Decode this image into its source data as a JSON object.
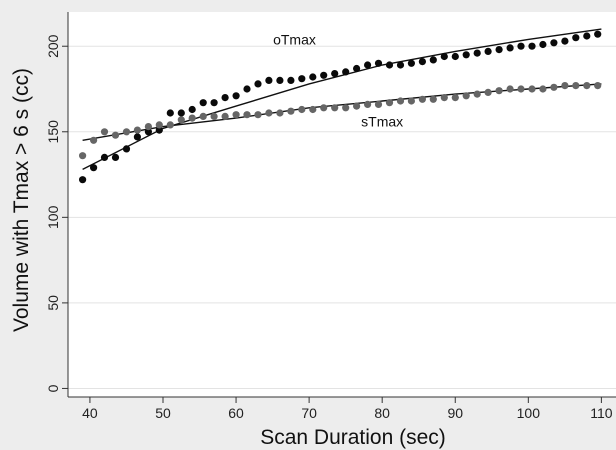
{
  "chart_data": {
    "type": "scatter",
    "title": "",
    "xlabel": "Scan Duration (sec)",
    "ylabel": "Volume with Tmax > 6 s (cc)",
    "xlim": [
      37,
      112
    ],
    "ylim": [
      -5,
      220
    ],
    "xticks": [
      40,
      50,
      60,
      70,
      80,
      90,
      100,
      110
    ],
    "yticks": [
      0,
      50,
      100,
      150,
      200
    ],
    "grid": "horizontal",
    "colors": {
      "background": "#ededed",
      "plot_background": "#ffffff",
      "grid": "#e3e3e3",
      "axis": "#333333",
      "fit_line": "#111111"
    },
    "series": [
      {
        "name": "oTmax",
        "color": "#0a0a0a",
        "x": [
          39,
          40.5,
          42,
          43.5,
          45,
          46.5,
          48,
          49.5,
          51,
          52.5,
          54,
          55.5,
          57,
          58.5,
          60,
          61.5,
          63,
          64.5,
          66,
          67.5,
          69,
          70.5,
          72,
          73.5,
          75,
          76.5,
          78,
          79.5,
          81,
          82.5,
          84,
          85.5,
          87,
          88.5,
          90,
          91.5,
          93,
          94.5,
          96,
          97.5,
          99,
          100.5,
          102,
          103.5,
          105,
          106.5,
          108,
          109.5
        ],
        "y": [
          122,
          129,
          135,
          135,
          140,
          147,
          150,
          151,
          161,
          161,
          163,
          167,
          167,
          170,
          171,
          175,
          178,
          180,
          180,
          180,
          181,
          182,
          183,
          184,
          185,
          187,
          189,
          190,
          189,
          189,
          190,
          191,
          192,
          194,
          194,
          195,
          196,
          197,
          198,
          199,
          200,
          200,
          201,
          202,
          203,
          205,
          206,
          207
        ],
        "fit": {
          "x": [
            39,
            50,
            60,
            70,
            80,
            90,
            100,
            110
          ],
          "y": [
            128,
            152,
            165,
            178,
            189,
            197,
            204,
            210
          ]
        }
      },
      {
        "name": "sTmax",
        "color": "#666666",
        "x": [
          39,
          40.5,
          42,
          43.5,
          45,
          46.5,
          48,
          49.5,
          51,
          52.5,
          54,
          55.5,
          57,
          58.5,
          60,
          61.5,
          63,
          64.5,
          66,
          67.5,
          69,
          70.5,
          72,
          73.5,
          75,
          76.5,
          78,
          79.5,
          81,
          82.5,
          84,
          85.5,
          87,
          88.5,
          90,
          91.5,
          93,
          94.5,
          96,
          97.5,
          99,
          100.5,
          102,
          103.5,
          105,
          106.5,
          108,
          109.5
        ],
        "y": [
          136,
          145,
          150,
          148,
          150,
          151,
          153,
          154,
          154,
          157,
          158,
          159,
          159,
          159,
          160,
          160,
          160,
          161,
          161,
          162,
          163,
          163,
          164,
          164,
          164,
          165,
          166,
          166,
          167,
          168,
          168,
          169,
          169,
          170,
          170,
          171,
          172,
          173,
          174,
          175,
          175,
          175,
          175,
          176,
          177,
          177,
          177,
          177
        ],
        "fit": {
          "x": [
            39,
            50,
            60,
            70,
            80,
            90,
            100,
            110
          ],
          "y": [
            145,
            153,
            158,
            164,
            168,
            172,
            175,
            178
          ]
        }
      }
    ],
    "annotations": [
      {
        "text": "oTmax",
        "x": 68,
        "y": 201
      },
      {
        "text": "sTmax",
        "x": 80,
        "y": 153
      }
    ]
  }
}
